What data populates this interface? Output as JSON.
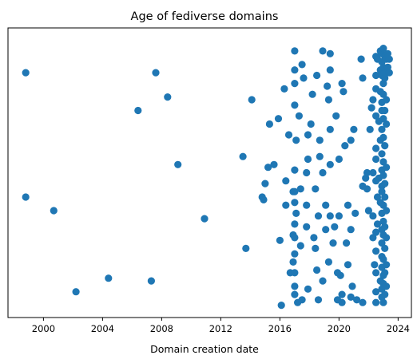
{
  "chart_data": {
    "type": "scatter",
    "title": "Age of fediverse domains",
    "xlabel": "Domain creation date",
    "ylabel": "",
    "x_ticks": [
      "2000",
      "2004",
      "2008",
      "2012",
      "2016",
      "2020",
      "2024"
    ],
    "xlim": [
      1997.6,
      2024.9
    ],
    "ylim": [
      0,
      100
    ],
    "y_axis_ticks_shown": false,
    "grid": false,
    "legend": "none",
    "marker_color": "#1f77b4",
    "points": [
      [
        1998.8,
        87
      ],
      [
        1998.8,
        41
      ],
      [
        2000.7,
        36
      ],
      [
        2002.2,
        6
      ],
      [
        2004.4,
        11
      ],
      [
        2006.4,
        73
      ],
      [
        2007.3,
        10
      ],
      [
        2007.6,
        87
      ],
      [
        2008.4,
        78
      ],
      [
        2009.1,
        53
      ],
      [
        2010.9,
        33
      ],
      [
        2013.5,
        56
      ],
      [
        2013.7,
        22
      ],
      [
        2014.1,
        77
      ],
      [
        2014.8,
        41
      ],
      [
        2014.9,
        40
      ],
      [
        2015.0,
        46
      ],
      [
        2015.2,
        52
      ],
      [
        2015.3,
        68
      ],
      [
        2015.6,
        53
      ],
      [
        2015.9,
        70
      ],
      [
        2016.0,
        25
      ],
      [
        2016.1,
        1
      ],
      [
        2016.3,
        81
      ],
      [
        2016.4,
        47
      ],
      [
        2016.4,
        38
      ],
      [
        2016.6,
        64
      ],
      [
        2016.7,
        13
      ],
      [
        2016.9,
        43
      ],
      [
        2016.9,
        27
      ],
      [
        2016.9,
        17
      ],
      [
        2017.0,
        95
      ],
      [
        2017.0,
        88
      ],
      [
        2017.0,
        83
      ],
      [
        2017.0,
        75
      ],
      [
        2017.0,
        51
      ],
      [
        2017.0,
        43
      ],
      [
        2017.0,
        39
      ],
      [
        2017.0,
        31
      ],
      [
        2017.0,
        26
      ],
      [
        2017.0,
        20
      ],
      [
        2017.0,
        13
      ],
      [
        2017.0,
        8
      ],
      [
        2017.0,
        5
      ],
      [
        2017.1,
        62
      ],
      [
        2017.1,
        35
      ],
      [
        2017.2,
        2
      ],
      [
        2017.3,
        71
      ],
      [
        2017.4,
        44
      ],
      [
        2017.4,
        23
      ],
      [
        2017.5,
        90
      ],
      [
        2017.5,
        3
      ],
      [
        2017.6,
        85
      ],
      [
        2017.8,
        50
      ],
      [
        2017.8,
        38
      ],
      [
        2017.8,
        30
      ],
      [
        2017.9,
        64
      ],
      [
        2017.9,
        55
      ],
      [
        2017.9,
        7
      ],
      [
        2018.1,
        68
      ],
      [
        2018.2,
        79
      ],
      [
        2018.3,
        26
      ],
      [
        2018.4,
        44
      ],
      [
        2018.4,
        22
      ],
      [
        2018.5,
        86
      ],
      [
        2018.5,
        14
      ],
      [
        2018.6,
        34
      ],
      [
        2018.6,
        3
      ],
      [
        2018.7,
        62
      ],
      [
        2018.7,
        56
      ],
      [
        2018.9,
        95
      ],
      [
        2018.9,
        50
      ],
      [
        2018.9,
        10
      ],
      [
        2019.1,
        38
      ],
      [
        2019.1,
        29
      ],
      [
        2019.2,
        82
      ],
      [
        2019.3,
        77
      ],
      [
        2019.3,
        17
      ],
      [
        2019.4,
        94
      ],
      [
        2019.4,
        88
      ],
      [
        2019.4,
        66
      ],
      [
        2019.4,
        53
      ],
      [
        2019.4,
        34
      ],
      [
        2019.6,
        24
      ],
      [
        2019.7,
        30
      ],
      [
        2019.8,
        71
      ],
      [
        2019.9,
        13
      ],
      [
        2019.9,
        3
      ],
      [
        2020.0,
        55
      ],
      [
        2020.0,
        34
      ],
      [
        2020.1,
        12
      ],
      [
        2020.2,
        83
      ],
      [
        2020.2,
        5
      ],
      [
        2020.2,
        2
      ],
      [
        2020.3,
        80
      ],
      [
        2020.4,
        60
      ],
      [
        2020.5,
        24
      ],
      [
        2020.6,
        38
      ],
      [
        2020.6,
        16
      ],
      [
        2020.8,
        62
      ],
      [
        2020.8,
        29
      ],
      [
        2020.8,
        4
      ],
      [
        2020.9,
        8
      ],
      [
        2021.0,
        66
      ],
      [
        2021.1,
        35
      ],
      [
        2021.2,
        3
      ],
      [
        2021.5,
        92
      ],
      [
        2021.6,
        85
      ],
      [
        2021.6,
        45
      ],
      [
        2021.6,
        2
      ],
      [
        2021.8,
        48
      ],
      [
        2021.9,
        50
      ],
      [
        2021.9,
        44
      ],
      [
        2022.0,
        36
      ],
      [
        2022.1,
        66
      ],
      [
        2022.2,
        74
      ],
      [
        2022.3,
        77
      ],
      [
        2022.3,
        50
      ],
      [
        2022.3,
        34
      ],
      [
        2022.3,
        26
      ],
      [
        2022.4,
        16
      ],
      [
        2022.5,
        93
      ],
      [
        2022.5,
        86
      ],
      [
        2022.5,
        81
      ],
      [
        2022.5,
        71
      ],
      [
        2022.5,
        59
      ],
      [
        2022.5,
        55
      ],
      [
        2022.5,
        47
      ],
      [
        2022.5,
        28
      ],
      [
        2022.5,
        21
      ],
      [
        2022.5,
        13
      ],
      [
        2022.5,
        6
      ],
      [
        2022.5,
        2
      ],
      [
        2022.6,
        92
      ],
      [
        2022.6,
        41
      ],
      [
        2022.6,
        31
      ],
      [
        2022.7,
        69
      ],
      [
        2022.7,
        48
      ],
      [
        2022.8,
        95
      ],
      [
        2022.8,
        88
      ],
      [
        2022.8,
        80
      ],
      [
        2022.8,
        62
      ],
      [
        2022.8,
        39
      ],
      [
        2022.8,
        10
      ],
      [
        2022.9,
        94
      ],
      [
        2022.9,
        91
      ],
      [
        2022.9,
        86
      ],
      [
        2022.9,
        76
      ],
      [
        2022.9,
        73
      ],
      [
        2022.9,
        66
      ],
      [
        2022.9,
        57
      ],
      [
        2022.9,
        51
      ],
      [
        2022.9,
        45
      ],
      [
        2022.9,
        43
      ],
      [
        2022.9,
        35
      ],
      [
        2022.9,
        29
      ],
      [
        2022.9,
        24
      ],
      [
        2022.9,
        19
      ],
      [
        2022.9,
        15
      ],
      [
        2022.9,
        7
      ],
      [
        2022.9,
        4
      ],
      [
        2023.0,
        96
      ],
      [
        2023.0,
        89
      ],
      [
        2023.0,
        83
      ],
      [
        2023.0,
        79
      ],
      [
        2023.0,
        70
      ],
      [
        2023.0,
        63
      ],
      [
        2023.0,
        54
      ],
      [
        2023.0,
        49
      ],
      [
        2023.0,
        38
      ],
      [
        2023.0,
        32
      ],
      [
        2023.0,
        27
      ],
      [
        2023.0,
        18
      ],
      [
        2023.0,
        12
      ],
      [
        2023.0,
        9
      ],
      [
        2023.0,
        2
      ],
      [
        2023.1,
        93
      ],
      [
        2023.1,
        85
      ],
      [
        2023.1,
        73
      ],
      [
        2023.1,
        60
      ],
      [
        2023.1,
        46
      ],
      [
        2023.1,
        41
      ],
      [
        2023.1,
        30
      ],
      [
        2023.1,
        22
      ],
      [
        2023.1,
        13
      ],
      [
        2023.1,
        5
      ],
      [
        2023.2,
        92
      ],
      [
        2023.2,
        87
      ],
      [
        2023.2,
        77
      ],
      [
        2023.2,
        68
      ],
      [
        2023.2,
        52
      ],
      [
        2023.2,
        36
      ],
      [
        2023.2,
        26
      ],
      [
        2023.2,
        16
      ],
      [
        2023.2,
        8
      ],
      [
        2023.3,
        94
      ],
      [
        2023.3,
        89
      ],
      [
        2023.4,
        92
      ],
      [
        2023.4,
        87
      ]
    ]
  }
}
